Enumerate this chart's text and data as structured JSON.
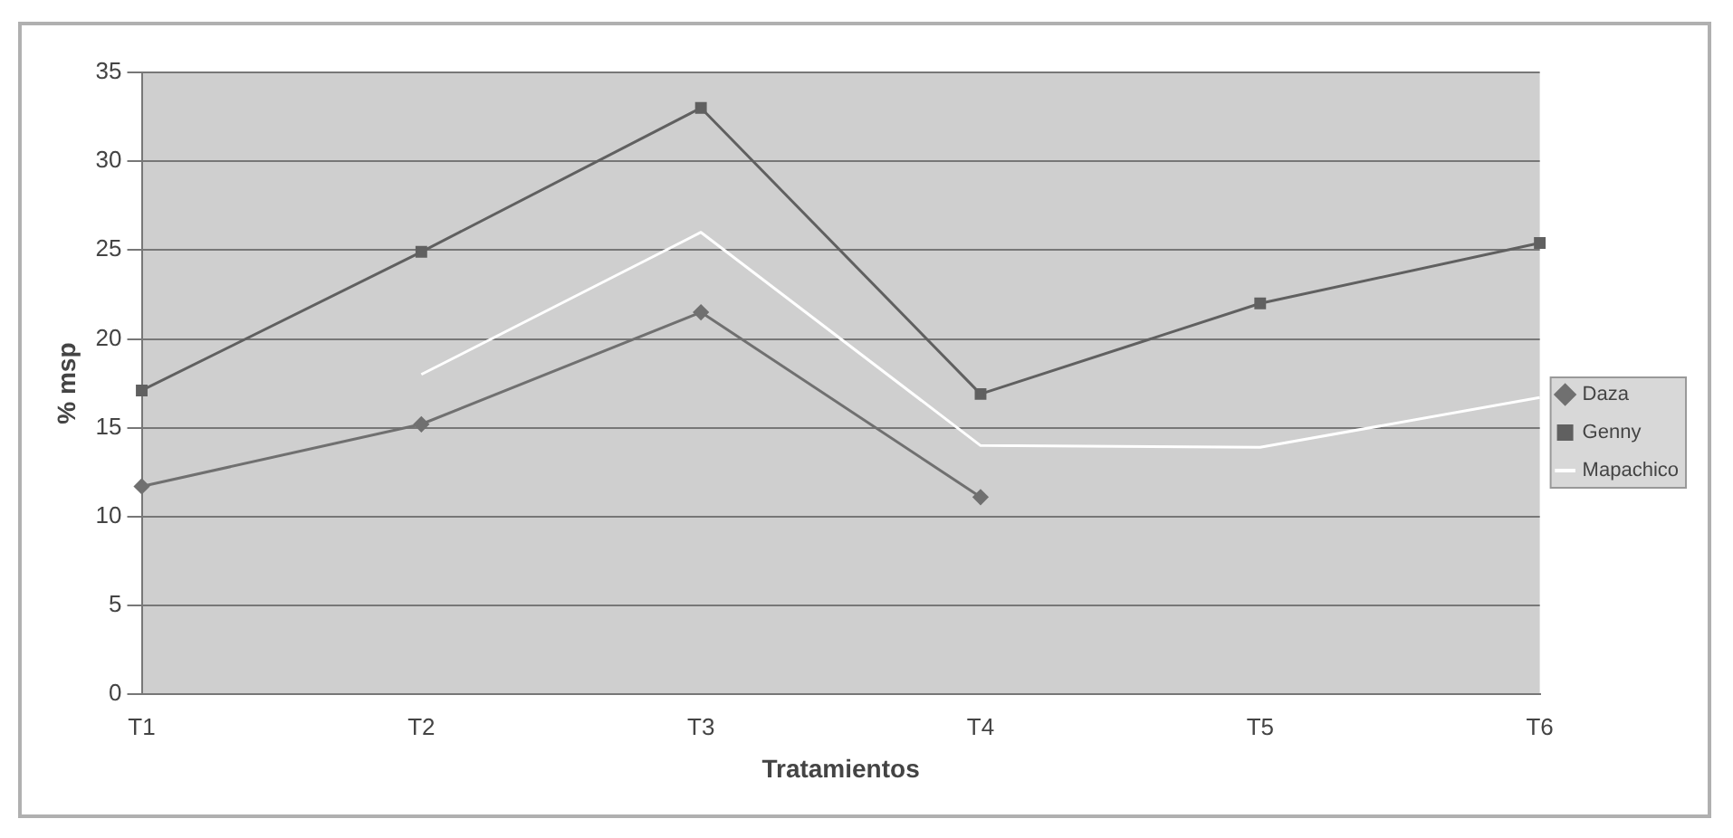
{
  "chart_data": {
    "type": "line",
    "xlabel": "Tratamientos",
    "ylabel": "% msp",
    "categories": [
      "T1",
      "T2",
      "T3",
      "T4",
      "T5",
      "T6"
    ],
    "series": [
      {
        "name": "Daza",
        "color": "#707070",
        "values": [
          11.7,
          15.2,
          21.5,
          11.1,
          null,
          null
        ],
        "marker": "diamond"
      },
      {
        "name": "Genny",
        "color": "#606060",
        "values": [
          17.1,
          24.9,
          33.0,
          16.9,
          22.0,
          25.4
        ],
        "marker": "square"
      },
      {
        "name": "Mapachico",
        "color": "#ffffff",
        "values": [
          null,
          18,
          26,
          14,
          13.9,
          16.7
        ],
        "marker": "none"
      }
    ],
    "ylim": [
      0,
      35
    ],
    "yticks": [
      0,
      5,
      10,
      15,
      20,
      25,
      30,
      35
    ],
    "grid": "y",
    "legend": "right"
  }
}
